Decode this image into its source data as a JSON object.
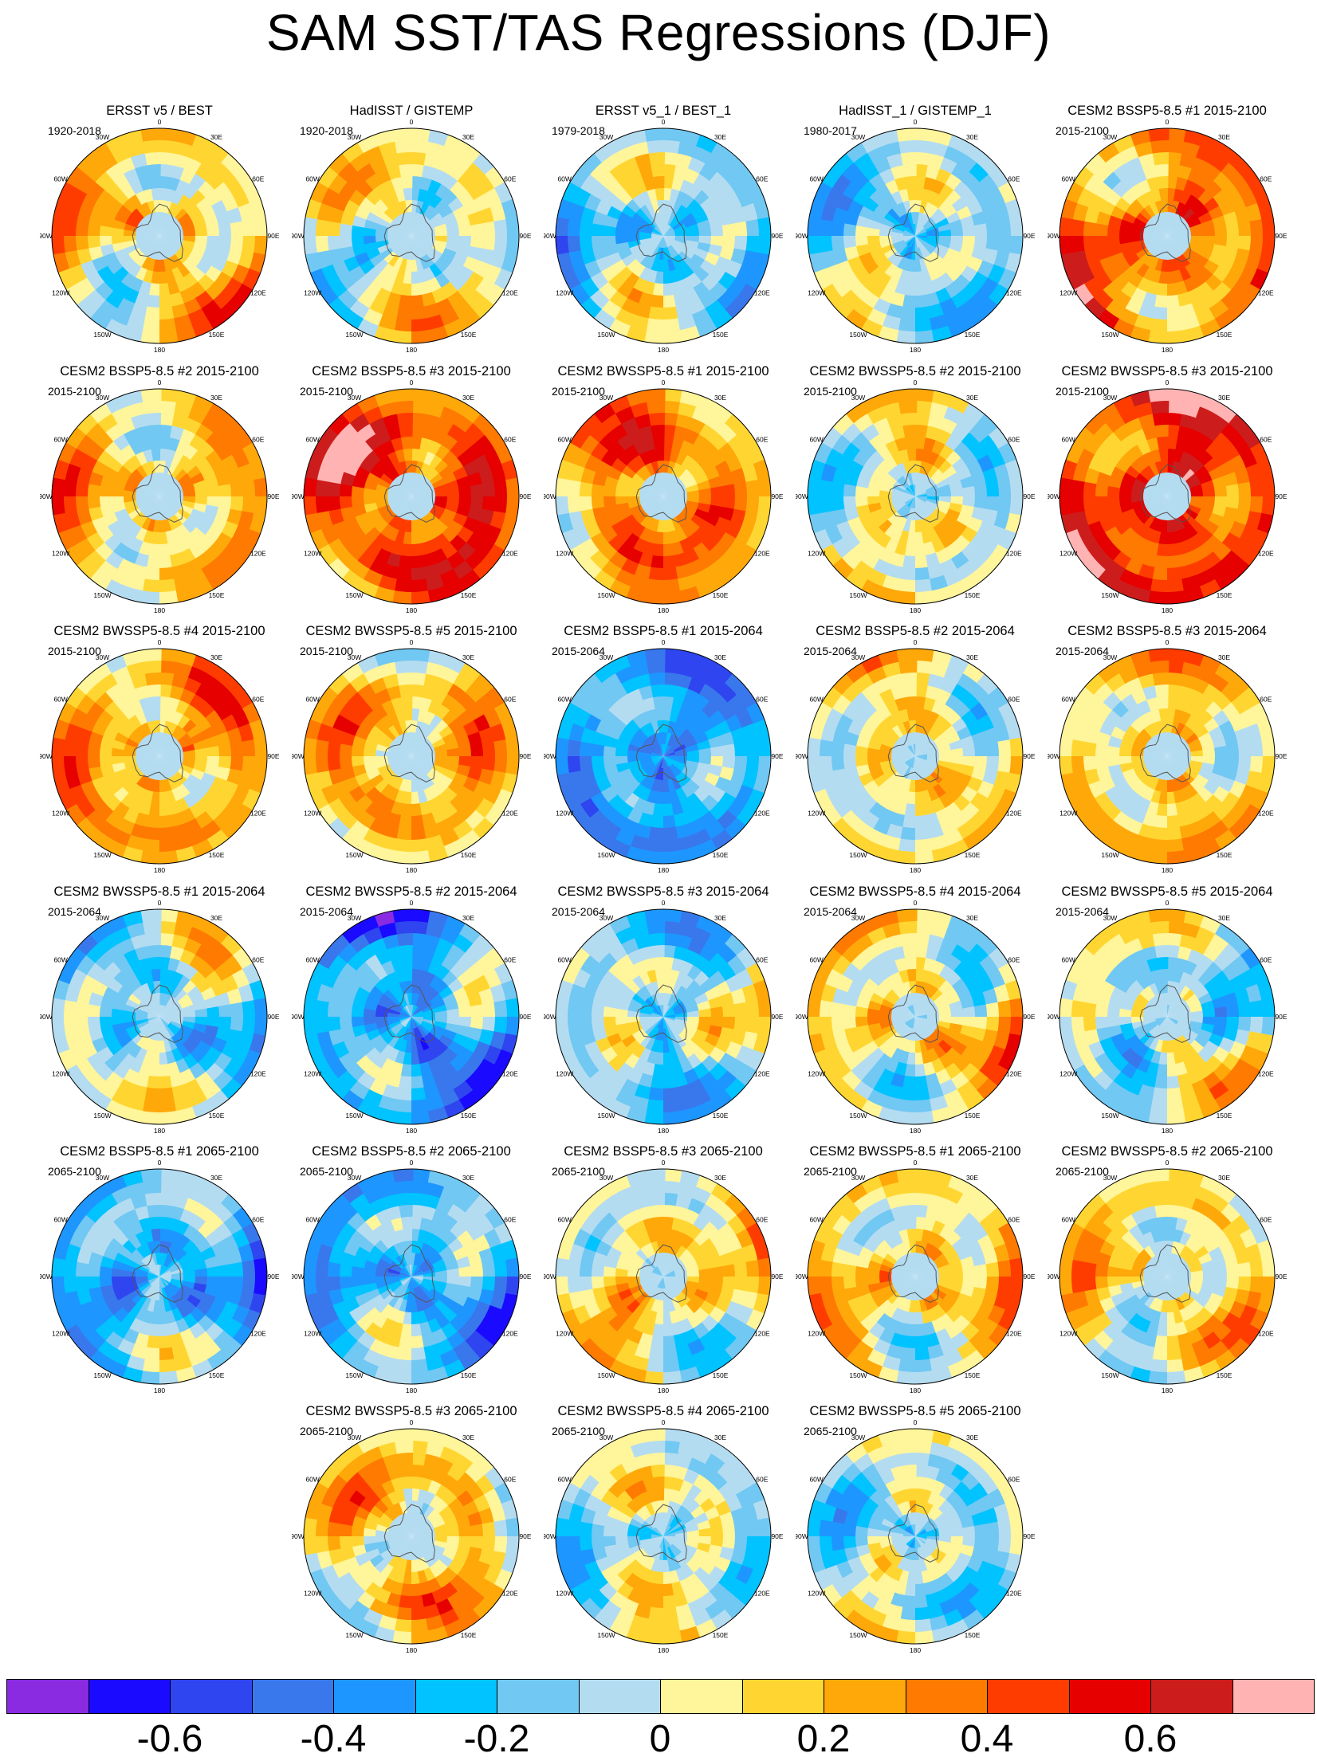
{
  "title": "SAM SST/TAS Regressions (DJF)",
  "longitude_labels": [
    "0",
    "30E",
    "60E",
    "90E",
    "120E",
    "150E",
    "180",
    "150W",
    "120W",
    "90W",
    "60W",
    "30W"
  ],
  "colorbar": {
    "colors": [
      "#8a2be2",
      "#1a0aff",
      "#2f45f0",
      "#3978ec",
      "#1e96ff",
      "#00c3ff",
      "#71c8f2",
      "#b4dcf1",
      "#fff59a",
      "#ffd631",
      "#ffa80a",
      "#ff7a00",
      "#ff3c00",
      "#e60000",
      "#cd1c1c",
      "#ffb3b3"
    ],
    "labels": [
      "-0.6",
      "-0.4",
      "-0.2",
      "0",
      "0.2",
      "0.4",
      "0.6"
    ]
  },
  "panels": [
    {
      "title": "ERSST v5 / BEST",
      "years": "1920-2018",
      "mean": 0.22,
      "seed": 1
    },
    {
      "title": "HadISST / GISTEMP",
      "years": "1920-2018",
      "mean": 0.13,
      "seed": 2
    },
    {
      "title": "ERSST v5_1 / BEST_1",
      "years": "1979-2018",
      "mean": 0.02,
      "seed": 3
    },
    {
      "title": "HadISST_1 / GISTEMP_1",
      "years": "1980-2017",
      "mean": 0.03,
      "seed": 4
    },
    {
      "title": "CESM2 BSSP5-8.5 #1 2015-2100",
      "years": "2015-2100",
      "mean": 0.38,
      "seed": 5
    },
    {
      "title": "CESM2 BSSP5-8.5 #2 2015-2100",
      "years": "2015-2100",
      "mean": 0.25,
      "seed": 6
    },
    {
      "title": "CESM2 BSSP5-8.5 #3 2015-2100",
      "years": "2015-2100",
      "mean": 0.55,
      "seed": 7
    },
    {
      "title": "CESM2 BWSSP5-8.5 #1 2015-2100",
      "years": "2015-2100",
      "mean": 0.42,
      "seed": 8
    },
    {
      "title": "CESM2 BWSSP5-8.5 #2 2015-2100",
      "years": "2015-2100",
      "mean": 0.12,
      "seed": 9
    },
    {
      "title": "CESM2 BWSSP5-8.5 #3 2015-2100",
      "years": "2015-2100",
      "mean": 0.55,
      "seed": 10
    },
    {
      "title": "CESM2 BWSSP5-8.5 #4 2015-2100",
      "years": "2015-2100",
      "mean": 0.33,
      "seed": 11
    },
    {
      "title": "CESM2 BWSSP5-8.5 #5 2015-2100",
      "years": "2015-2100",
      "mean": 0.32,
      "seed": 12
    },
    {
      "title": "CESM2 BSSP5-8.5 #1 2015-2064",
      "years": "2015-2064",
      "mean": -0.18,
      "seed": 13
    },
    {
      "title": "CESM2 BSSP5-8.5 #2 2015-2064",
      "years": "2015-2064",
      "mean": 0.16,
      "seed": 14
    },
    {
      "title": "CESM2 BSSP5-8.5 #3 2015-2064",
      "years": "2015-2064",
      "mean": 0.22,
      "seed": 15
    },
    {
      "title": "CESM2 BWSSP5-8.5 #1 2015-2064",
      "years": "2015-2064",
      "mean": 0.02,
      "seed": 16
    },
    {
      "title": "CESM2 BWSSP5-8.5 #2 2015-2064",
      "years": "2015-2064",
      "mean": -0.16,
      "seed": 17
    },
    {
      "title": "CESM2 BWSSP5-8.5 #3 2015-2064",
      "years": "2015-2064",
      "mean": 0.02,
      "seed": 18
    },
    {
      "title": "CESM2 BWSSP5-8.5 #4 2015-2064",
      "years": "2015-2064",
      "mean": 0.16,
      "seed": 19
    },
    {
      "title": "CESM2 BWSSP5-8.5 #5 2015-2064",
      "years": "2015-2064",
      "mean": 0.05,
      "seed": 20
    },
    {
      "title": "CESM2 BSSP5-8.5 #1 2065-2100",
      "years": "2065-2100",
      "mean": -0.12,
      "seed": 21
    },
    {
      "title": "CESM2 BSSP5-8.5 #2 2065-2100",
      "years": "2065-2100",
      "mean": -0.1,
      "seed": 22
    },
    {
      "title": "CESM2 BSSP5-8.5 #3 2065-2100",
      "years": "2065-2100",
      "mean": 0.18,
      "seed": 23
    },
    {
      "title": "CESM2 BWSSP5-8.5 #1 2065-2100",
      "years": "2065-2100",
      "mean": 0.2,
      "seed": 24
    },
    {
      "title": "CESM2 BWSSP5-8.5 #2 2065-2100",
      "years": "2065-2100",
      "mean": 0.2,
      "seed": 25
    },
    {
      "title": "CESM2 BWSSP5-8.5 #3 2065-2100",
      "years": "2065-2100",
      "mean": 0.27,
      "seed": 26
    },
    {
      "title": "CESM2 BWSSP5-8.5 #4 2065-2100",
      "years": "2065-2100",
      "mean": 0.1,
      "seed": 27
    },
    {
      "title": "CESM2 BWSSP5-8.5 #5 2065-2100",
      "years": "2065-2100",
      "mean": 0.03,
      "seed": 28
    }
  ]
}
